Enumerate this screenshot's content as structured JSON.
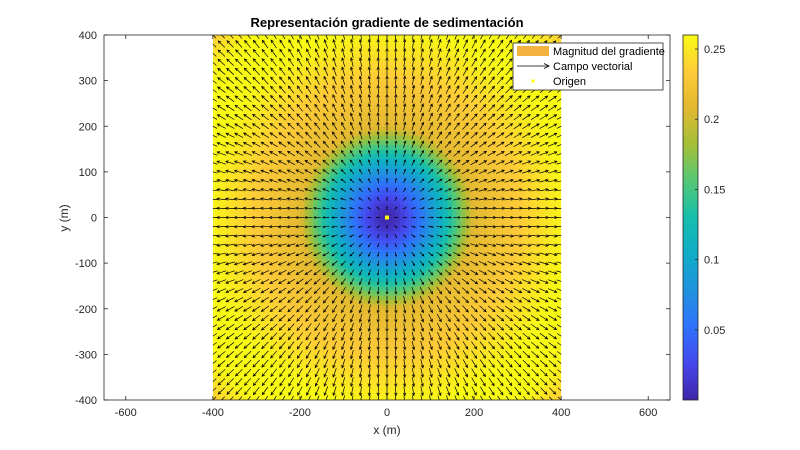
{
  "chart_data": {
    "type": "heatmap",
    "title": "Representación gradiente de sedimentación",
    "xlabel": "x (m)",
    "ylabel": "y (m)",
    "xlim": [
      -650,
      650
    ],
    "ylim": [
      -400,
      400
    ],
    "data_extent": {
      "x": [
        -400,
        400
      ],
      "y": [
        -400,
        400
      ]
    },
    "x_ticks": [
      -600,
      -400,
      -200,
      0,
      200,
      400,
      600
    ],
    "y_ticks": [
      -400,
      -300,
      -200,
      -100,
      0,
      100,
      200,
      300,
      400
    ],
    "x_tick_labels": [
      "-600",
      "-400",
      "-200",
      "0",
      "200",
      "400",
      "600"
    ],
    "y_tick_labels": [
      "-400",
      "-300",
      "-200",
      "-100",
      "0",
      "100",
      "200",
      "300",
      "400"
    ],
    "colorbar": {
      "range": [
        0,
        0.26
      ],
      "ticks": [
        0.05,
        0.1,
        0.15,
        0.2,
        0.25
      ],
      "tick_labels": [
        "0.05",
        "0.1",
        "0.15",
        "0.2",
        "0.25"
      ],
      "colormap": "parula"
    },
    "field": {
      "description": "radial gradient magnitude, low at origin rising outward",
      "magnitude_at_origin": 0.0,
      "magnitude_at_r200": 0.21,
      "magnitude_max": 0.26,
      "vector_direction": "radially outward from origin",
      "vector_spacing": 20
    },
    "legend": {
      "placement": "top-right",
      "entries": [
        {
          "label": "Magnitud del gradiente",
          "kind": "patch",
          "color": "#f4b33e"
        },
        {
          "label": "Campo vectorial",
          "kind": "arrow",
          "color": "#000000"
        },
        {
          "label": "Origen",
          "kind": "marker",
          "color": "#ffff00"
        }
      ]
    },
    "origin_point": {
      "x": 0,
      "y": 0
    }
  }
}
